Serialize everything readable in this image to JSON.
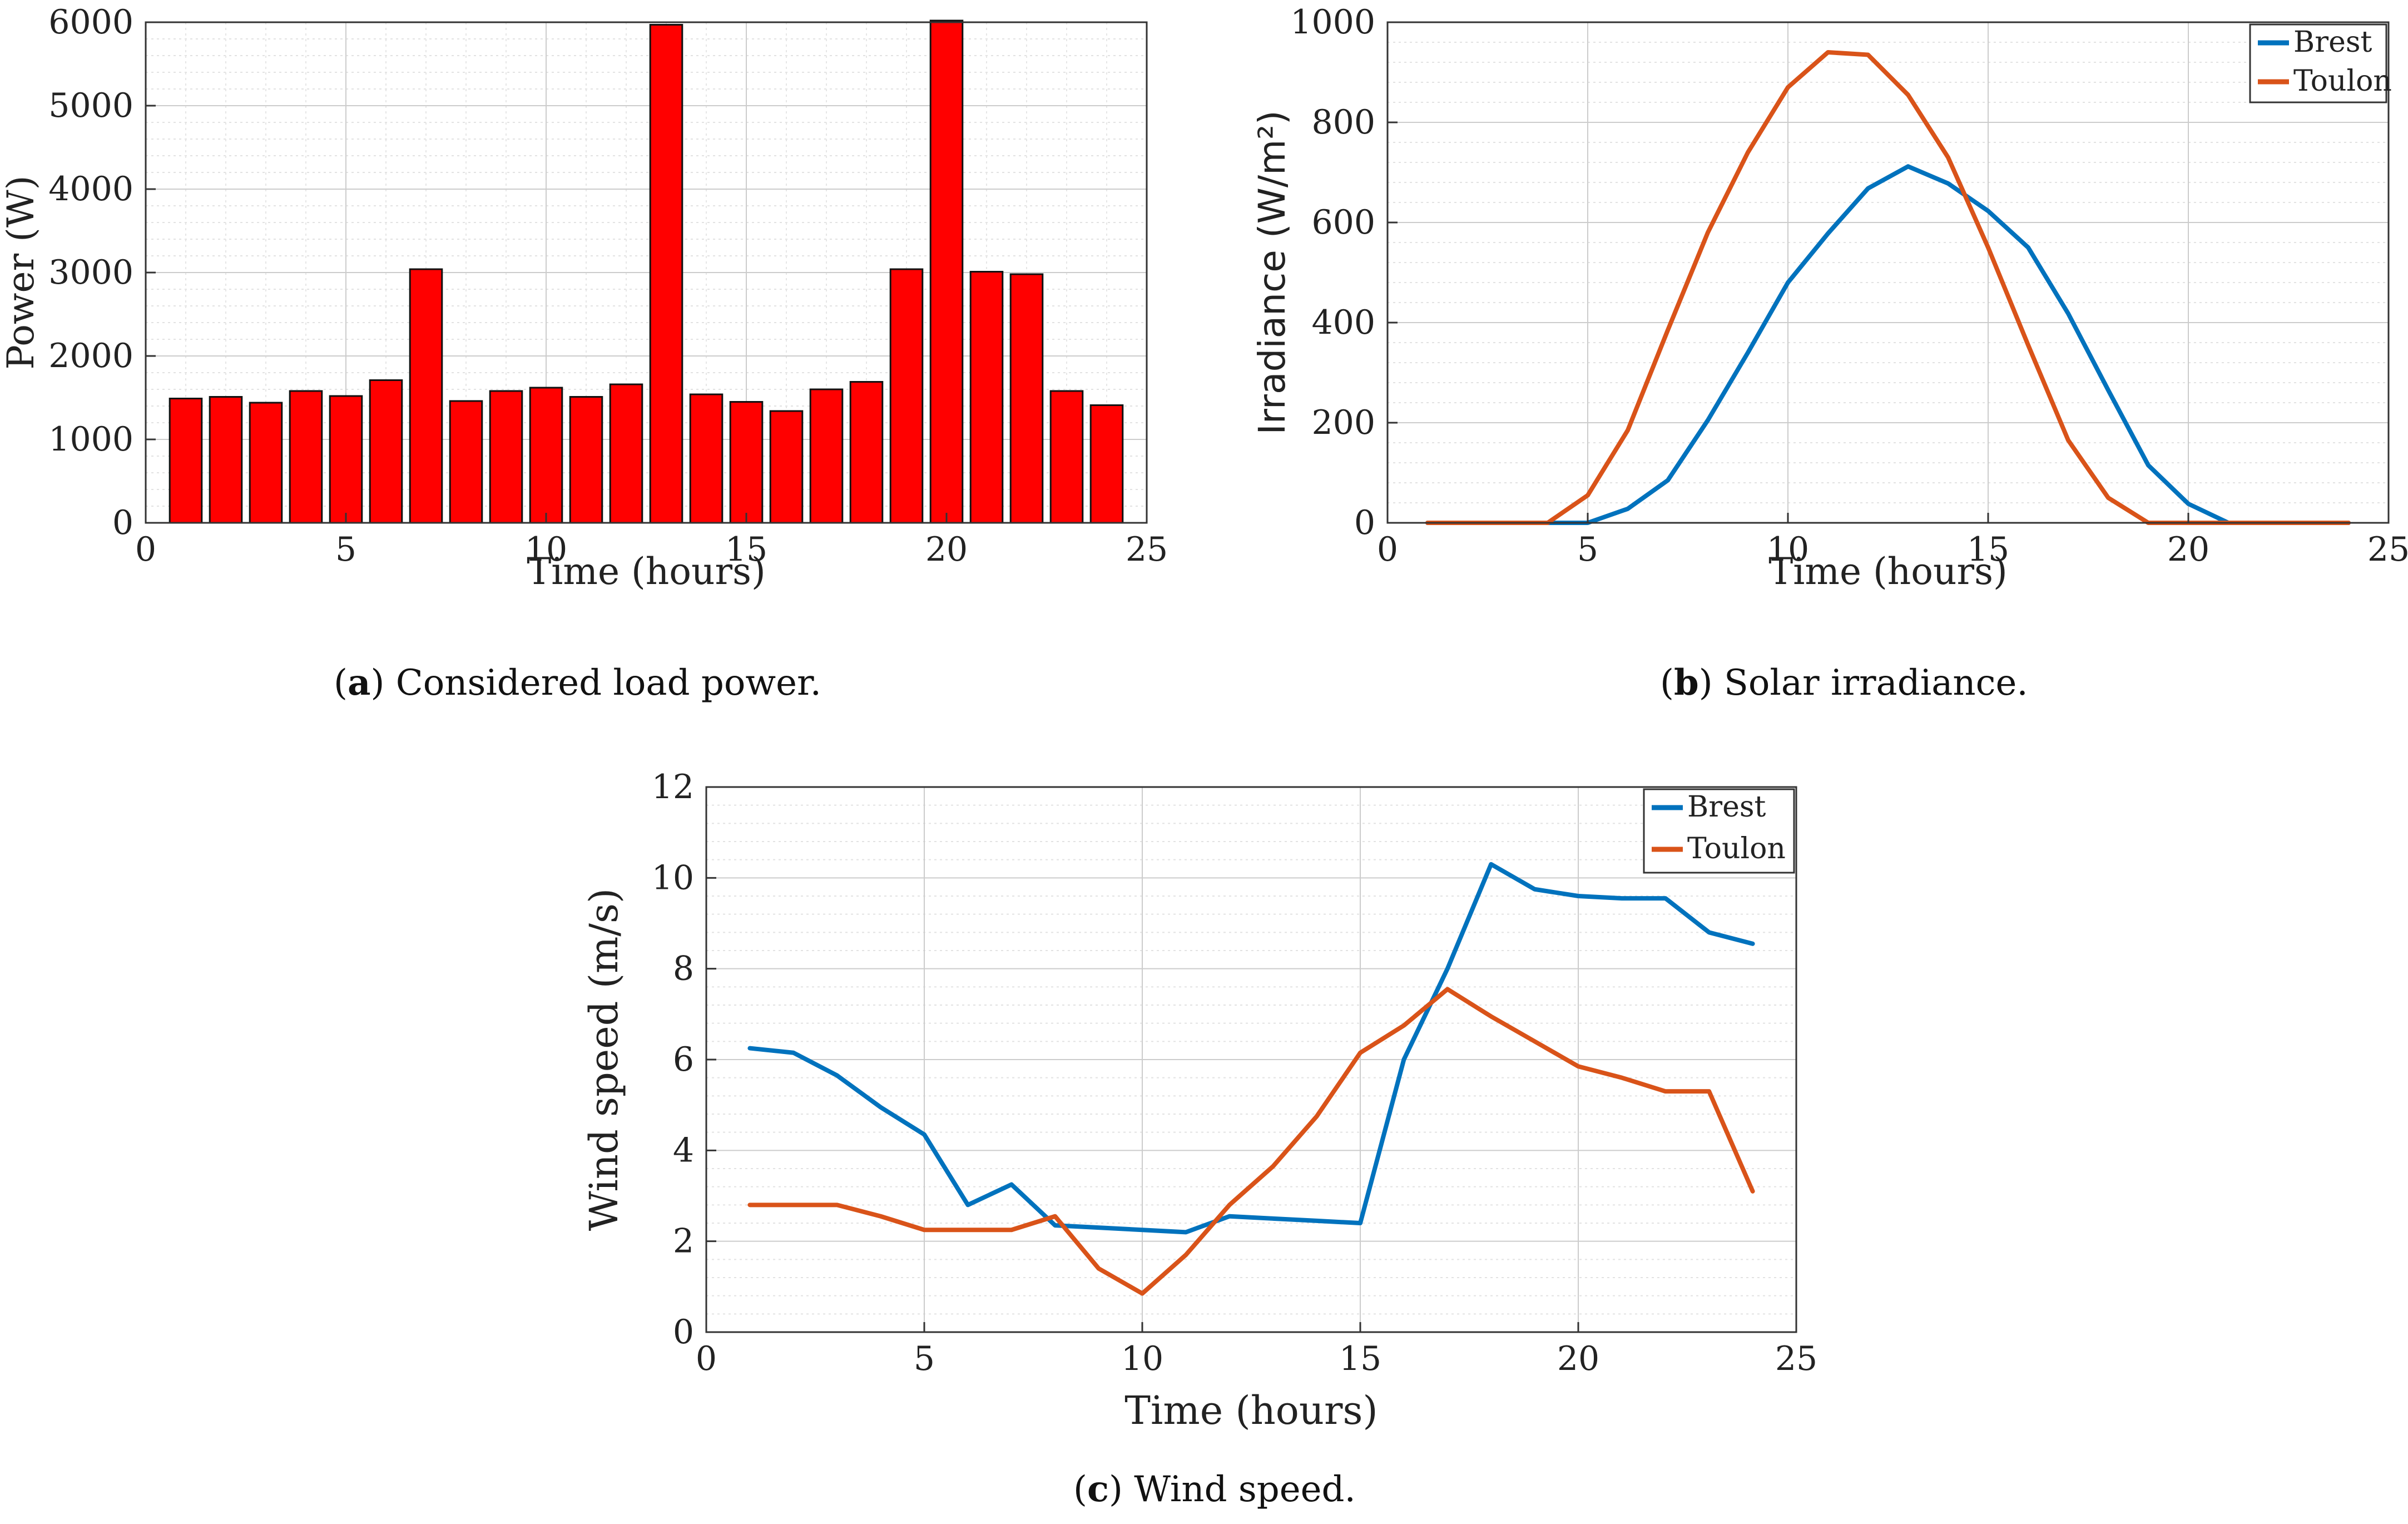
{
  "captions": {
    "a": {
      "letter": "a",
      "text": "Considered load power."
    },
    "b": {
      "letter": "b",
      "text": "Solar irradiance."
    },
    "c": {
      "letter": "c",
      "text": "Wind speed."
    }
  },
  "colors": {
    "bar": "#ff0000",
    "bar_edge": "#111111",
    "brest": "#0072bd",
    "toulon": "#d95319",
    "grid": "#cccccc"
  },
  "chart_data": [
    {
      "id": "a",
      "type": "bar",
      "title": "",
      "xlabel": "Time (hours)",
      "ylabel": "Power (W)",
      "xlim": [
        0,
        25
      ],
      "ylim": [
        0,
        6000
      ],
      "xticks": [
        0,
        5,
        10,
        15,
        20,
        25
      ],
      "yticks": [
        0,
        1000,
        2000,
        3000,
        4000,
        5000,
        6000
      ],
      "categories": [
        1,
        2,
        3,
        4,
        5,
        6,
        7,
        8,
        9,
        10,
        11,
        12,
        13,
        14,
        15,
        16,
        17,
        18,
        19,
        20,
        21,
        22,
        23,
        24
      ],
      "values": [
        1490,
        1510,
        1440,
        1580,
        1520,
        1710,
        3040,
        1460,
        1580,
        1620,
        1510,
        1660,
        5970,
        1540,
        1450,
        1340,
        1600,
        1690,
        3040,
        6020,
        3010,
        2980,
        1580,
        1410
      ],
      "grid": true,
      "legend": null
    },
    {
      "id": "b",
      "type": "line",
      "title": "",
      "xlabel": "Time (hours)",
      "ylabel": "Irradiance (W/m²)",
      "xlim": [
        0,
        25
      ],
      "ylim": [
        0,
        1000
      ],
      "xticks": [
        0,
        5,
        10,
        15,
        20,
        25
      ],
      "yticks": [
        0,
        200,
        400,
        600,
        800,
        1000
      ],
      "x": [
        1,
        2,
        3,
        4,
        5,
        6,
        7,
        8,
        9,
        10,
        11,
        12,
        13,
        14,
        15,
        16,
        17,
        18,
        19,
        20,
        21,
        22,
        23,
        24
      ],
      "series": [
        {
          "name": "Brest",
          "color_key": "brest",
          "values": [
            0,
            0,
            0,
            0,
            0,
            28,
            85,
            205,
            340,
            480,
            578,
            668,
            712,
            678,
            623,
            550,
            418,
            265,
            115,
            38,
            0,
            0,
            0,
            0
          ]
        },
        {
          "name": "Toulon",
          "color_key": "toulon",
          "values": [
            0,
            0,
            0,
            0,
            55,
            185,
            385,
            580,
            740,
            870,
            940,
            935,
            855,
            730,
            550,
            355,
            165,
            50,
            0,
            0,
            0,
            0,
            0,
            0
          ]
        }
      ],
      "grid": true,
      "legend": "top-right"
    },
    {
      "id": "c",
      "type": "line",
      "title": "",
      "xlabel": "Time (hours)",
      "ylabel": "Wind speed (m/s)",
      "xlim": [
        0,
        25
      ],
      "ylim": [
        0,
        12
      ],
      "xticks": [
        0,
        5,
        10,
        15,
        20,
        25
      ],
      "yticks": [
        0,
        2,
        4,
        6,
        8,
        10,
        12
      ],
      "x": [
        1,
        2,
        3,
        4,
        5,
        6,
        7,
        8,
        9,
        10,
        11,
        12,
        13,
        14,
        15,
        16,
        17,
        18,
        19,
        20,
        21,
        22,
        23,
        24
      ],
      "series": [
        {
          "name": "Brest",
          "color_key": "brest",
          "values": [
            6.25,
            6.15,
            5.65,
            4.95,
            4.35,
            2.8,
            3.25,
            2.35,
            2.3,
            2.25,
            2.2,
            2.55,
            2.5,
            2.45,
            2.4,
            6.0,
            8.0,
            10.3,
            9.75,
            9.6,
            9.55,
            9.55,
            8.8,
            8.55
          ]
        },
        {
          "name": "Toulon",
          "color_key": "toulon",
          "values": [
            2.8,
            2.8,
            2.8,
            2.55,
            2.25,
            2.25,
            2.25,
            2.55,
            1.4,
            0.85,
            1.7,
            2.8,
            3.65,
            4.75,
            6.15,
            6.75,
            7.55,
            6.95,
            6.4,
            5.85,
            5.6,
            5.3,
            5.3,
            3.1
          ]
        }
      ],
      "grid": true,
      "legend": "top-right"
    }
  ]
}
